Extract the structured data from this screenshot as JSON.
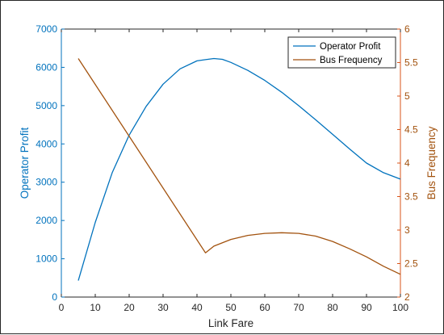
{
  "colors": {
    "left_axis": "#0072BD",
    "right_axis": "#D95319",
    "right_axis_text": "#A2520E",
    "profit_line": "#0072BD",
    "frequency_line": "#A2520E",
    "bottom_axis": "#262626"
  },
  "chart_data": {
    "type": "line",
    "title": "",
    "xlabel": "Link Fare",
    "ylabel_left": "Operator Profit",
    "ylabel_right": "Bus Frequency",
    "xlim": [
      0,
      100
    ],
    "ylim_left": [
      0,
      7000
    ],
    "ylim_right": [
      2,
      6
    ],
    "x_ticks": [
      "0",
      "10",
      "20",
      "30",
      "40",
      "50",
      "60",
      "70",
      "80",
      "90",
      "100"
    ],
    "y_left_ticks": [
      "0",
      "1000",
      "2000",
      "3000",
      "4000",
      "5000",
      "6000",
      "7000"
    ],
    "y_right_ticks": [
      "2",
      "2.5",
      "3",
      "3.5",
      "4",
      "4.5",
      "5",
      "5.5",
      "6"
    ],
    "legend_position": "top-right",
    "grid": false,
    "series": [
      {
        "name": "Operator Profit",
        "axis": "left",
        "x": [
          5,
          10,
          15,
          20,
          25,
          30,
          35,
          40,
          42.5,
          45,
          47.5,
          50,
          55,
          60,
          65,
          70,
          75,
          80,
          85,
          90,
          95,
          100
        ],
        "y": [
          430,
          1950,
          3250,
          4230,
          4980,
          5560,
          5960,
          6170,
          6200,
          6230,
          6210,
          6130,
          5920,
          5660,
          5350,
          5000,
          4630,
          4250,
          3870,
          3500,
          3250,
          3080
        ]
      },
      {
        "name": "Bus Frequency",
        "axis": "right",
        "x": [
          5,
          42.5,
          45,
          50,
          55,
          60,
          65,
          70,
          75,
          80,
          85,
          90,
          95,
          100
        ],
        "y": [
          5.56,
          2.66,
          2.76,
          2.86,
          2.92,
          2.95,
          2.96,
          2.95,
          2.91,
          2.83,
          2.72,
          2.6,
          2.46,
          2.34
        ]
      }
    ]
  }
}
